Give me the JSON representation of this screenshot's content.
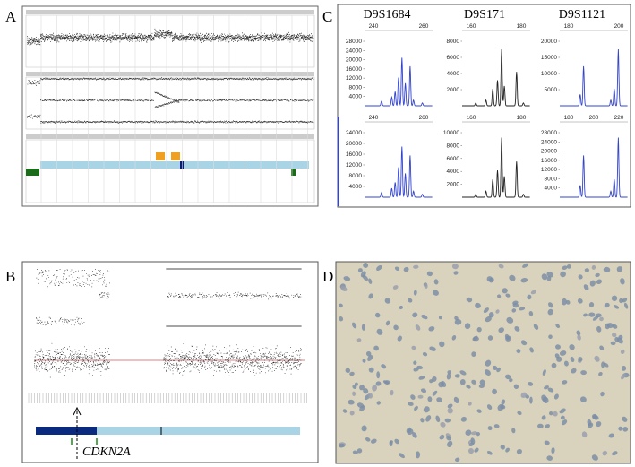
{
  "panels": {
    "A": {
      "label": "A"
    },
    "B": {
      "label": "B",
      "gene": "CDKN2A"
    },
    "C": {
      "label": "C",
      "markers": [
        "D9S1684",
        "D9S171",
        "D9S1121"
      ],
      "plots": [
        {
          "xticks": [
            240,
            260
          ],
          "yticks": [
            4000,
            8000,
            12000,
            16000,
            20000,
            24000,
            28000
          ]
        },
        {
          "xticks": [
            160,
            180
          ],
          "yticks": [
            2000,
            4000,
            6000,
            8000
          ]
        },
        {
          "xticks": [
            180,
            200
          ],
          "yticks": [
            5000,
            10000,
            15000,
            20000
          ]
        },
        {
          "xticks": [
            240,
            260
          ],
          "yticks": [
            4000,
            8000,
            12000,
            16000,
            20000,
            24000
          ]
        },
        {
          "xticks": [
            160,
            180
          ],
          "yticks": [
            2000,
            4000,
            6000,
            8000,
            10000
          ]
        },
        {
          "xticks": [
            180,
            200,
            220
          ],
          "yticks": [
            4000,
            8000,
            12000,
            16000,
            20000,
            24000,
            28000
          ]
        }
      ]
    },
    "D": {
      "label": "D"
    }
  }
}
